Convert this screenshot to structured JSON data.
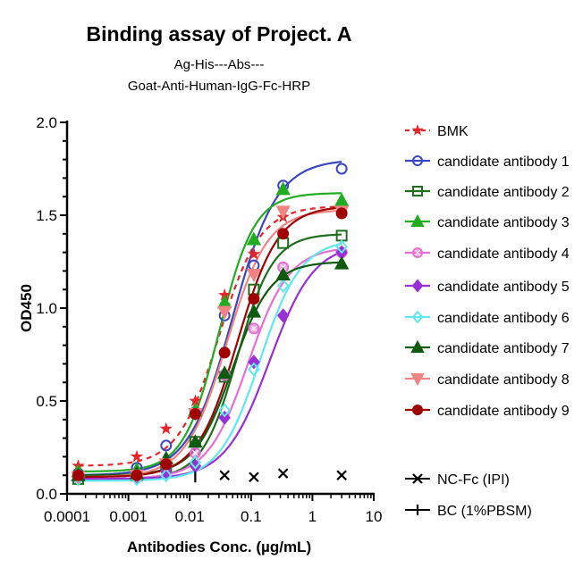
{
  "chart_data": {
    "type": "line",
    "title": "Binding assay of  Project. A",
    "subtitle_lines": [
      "Ag-His---Abs---",
      "Goat-Anti-Human-IgG-Fc-HRP"
    ],
    "xlabel": "Antibodies Conc. (µg/mL)",
    "ylabel": "OD450",
    "xscale": "log",
    "xlim": [
      0.0001,
      10
    ],
    "ylim": [
      0,
      2.0
    ],
    "xticks": [
      0.0001,
      0.001,
      0.01,
      0.1,
      1,
      10
    ],
    "xtick_labels": [
      "0.0001",
      "0.001",
      "0.01",
      "0.1",
      "1",
      "10"
    ],
    "yticks": [
      0,
      0.5,
      1.0,
      1.5,
      2.0
    ],
    "ytick_labels": [
      "0.0",
      "0.5",
      "1.0",
      "1.5",
      "2.0"
    ],
    "grid": false,
    "legend_position": "right",
    "x": [
      0.000152,
      0.00137,
      0.00412,
      0.0123,
      0.037,
      0.111,
      0.333,
      3
    ],
    "series": [
      {
        "name": "BMK",
        "color": "#e3262a",
        "marker": "star",
        "dashed": true,
        "values": [
          0.15,
          0.2,
          0.35,
          0.5,
          1.07,
          1.29,
          1.49,
          1.54
        ],
        "fit": {
          "bottom": 0.15,
          "top": 1.55,
          "ec50": 0.03,
          "hill": 1.3
        }
      },
      {
        "name": "candidate antibody 1",
        "color": "#3a46c0",
        "marker": "circle-open",
        "values": [
          0.11,
          0.14,
          0.26,
          0.44,
          0.96,
          1.23,
          1.66,
          1.75
        ],
        "fit": {
          "bottom": 0.1,
          "top": 1.8,
          "ec50": 0.05,
          "hill": 1.2
        }
      },
      {
        "name": "candidate antibody 2",
        "color": "#1e6e1e",
        "marker": "square-open",
        "values": [
          0.08,
          0.1,
          0.15,
          0.28,
          0.63,
          1.1,
          1.35,
          1.39
        ],
        "fit": {
          "bottom": 0.08,
          "top": 1.4,
          "ec50": 0.06,
          "hill": 1.5
        }
      },
      {
        "name": "candidate antibody 3",
        "color": "#22ac22",
        "marker": "triangle",
        "values": [
          0.12,
          0.13,
          0.19,
          0.45,
          1.03,
          1.37,
          1.64,
          1.58
        ],
        "fit": {
          "bottom": 0.12,
          "top": 1.62,
          "ec50": 0.03,
          "hill": 1.5
        }
      },
      {
        "name": "candidate antibody 4",
        "color": "#e56fd2",
        "marker": "circle-cross",
        "values": [
          0.09,
          0.09,
          0.16,
          0.22,
          0.64,
          0.89,
          1.22,
          1.3
        ],
        "fit": {
          "bottom": 0.08,
          "top": 1.33,
          "ec50": 0.09,
          "hill": 1.3
        }
      },
      {
        "name": "candidate antibody 5",
        "color": "#9a2fd6",
        "marker": "diamond",
        "values": [
          0.08,
          0.09,
          0.12,
          0.15,
          0.41,
          0.71,
          0.96,
          1.3
        ],
        "fit": {
          "bottom": 0.08,
          "top": 1.35,
          "ec50": 0.2,
          "hill": 1.2
        }
      },
      {
        "name": "candidate antibody 6",
        "color": "#5ee8f0",
        "marker": "diamond-open",
        "values": [
          0.08,
          0.08,
          0.1,
          0.17,
          0.45,
          0.67,
          1.12,
          1.33
        ],
        "fit": {
          "bottom": 0.07,
          "top": 1.37,
          "ec50": 0.14,
          "hill": 1.3
        }
      },
      {
        "name": "candidate antibody 7",
        "color": "#0e5a0e",
        "marker": "triangle",
        "values": [
          0.1,
          0.11,
          0.19,
          0.28,
          0.65,
          0.98,
          1.18,
          1.24
        ],
        "fit": {
          "bottom": 0.1,
          "top": 1.25,
          "ec50": 0.05,
          "hill": 1.4
        }
      },
      {
        "name": "candidate antibody 8",
        "color": "#f08482",
        "marker": "triangle-down",
        "values": [
          0.09,
          0.1,
          0.16,
          0.43,
          0.98,
          1.18,
          1.52,
          1.52
        ],
        "fit": {
          "bottom": 0.09,
          "top": 1.53,
          "ec50": 0.04,
          "hill": 1.3
        }
      },
      {
        "name": "candidate antibody 9",
        "color": "#a00000",
        "marker": "circle",
        "values": [
          0.1,
          0.1,
          0.16,
          0.43,
          0.76,
          1.05,
          1.4,
          1.51
        ],
        "fit": {
          "bottom": 0.09,
          "top": 1.55,
          "ec50": 0.06,
          "hill": 1.3
        }
      }
    ],
    "controls": [
      {
        "name": "NC-Fc (IPI)",
        "color": "#000000",
        "marker": "x",
        "x": [
          0.037,
          0.111,
          0.333,
          3
        ],
        "values": [
          0.1,
          0.09,
          0.11,
          0.1
        ]
      },
      {
        "name": "BC (1%PBSM)",
        "color": "#000000",
        "marker": "bar",
        "x": [
          0.0123
        ],
        "values": [
          0.09
        ]
      }
    ]
  }
}
